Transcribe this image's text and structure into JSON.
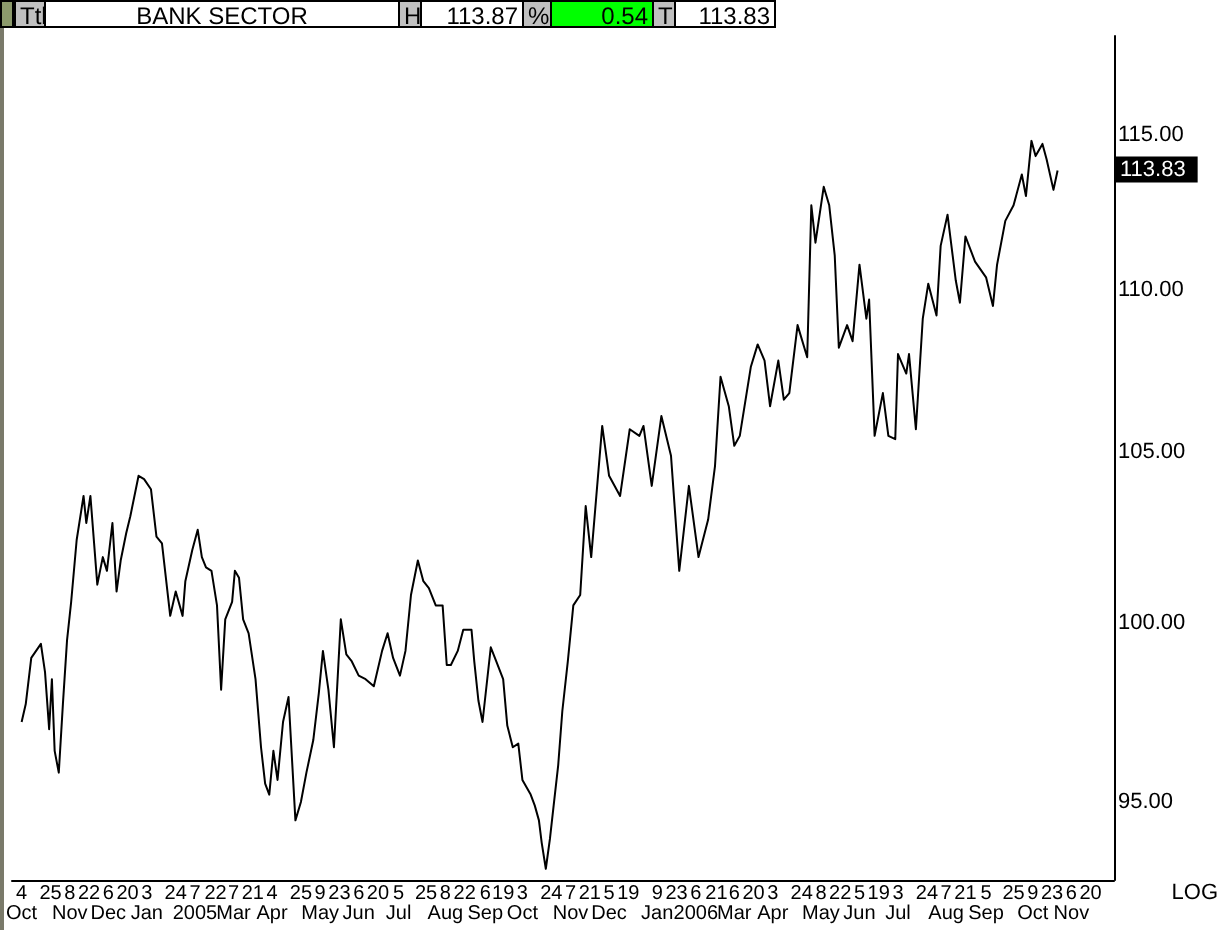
{
  "chart_data": {
    "type": "line",
    "title": "BANK SECTOR",
    "annotations": [
      "Ttl",
      "H",
      "113.87",
      "%",
      "0.54",
      "T",
      "113.83",
      "LOG",
      {
        "text": "113.83",
        "x": "2006-10-27",
        "y": 113.83
      }
    ],
    "x": [
      "2004-10-04",
      "2004-10-07",
      "2004-10-11",
      "2004-10-18",
      "2004-10-21",
      "2004-10-24",
      "2004-10-26",
      "2004-10-28",
      "2004-10-31",
      "2004-11-03",
      "2004-11-06",
      "2004-11-09",
      "2004-11-13",
      "2004-11-18",
      "2004-11-20",
      "2004-11-23",
      "2004-11-28",
      "2004-12-02",
      "2004-12-05",
      "2004-12-09",
      "2004-12-12",
      "2004-12-15",
      "2004-12-19",
      "2004-12-22",
      "2004-12-28",
      "2005-01-01",
      "2005-01-06",
      "2005-01-10",
      "2005-01-14",
      "2005-01-20",
      "2005-01-24",
      "2005-01-29",
      "2005-01-31",
      "2005-02-05",
      "2005-02-09",
      "2005-02-12",
      "2005-02-15",
      "2005-02-19",
      "2005-02-23",
      "2005-02-26",
      "2005-03-01",
      "2005-03-06",
      "2005-03-08",
      "2005-03-11",
      "2005-03-14",
      "2005-03-18",
      "2005-03-23",
      "2005-03-27",
      "2005-03-30",
      "2005-04-02",
      "2005-04-05",
      "2005-04-08",
      "2005-04-12",
      "2005-04-16",
      "2005-04-21",
      "2005-04-25",
      "2005-04-29",
      "2005-05-04",
      "2005-05-08",
      "2005-05-11",
      "2005-05-15",
      "2005-05-19",
      "2005-05-24",
      "2005-05-28",
      "2005-06-01",
      "2005-06-06",
      "2005-06-11",
      "2005-06-17",
      "2005-06-23",
      "2005-06-27",
      "2005-07-01",
      "2005-07-06",
      "2005-07-10",
      "2005-07-14",
      "2005-07-19",
      "2005-07-23",
      "2005-07-27",
      "2005-08-01",
      "2005-08-06",
      "2005-08-09",
      "2005-08-12",
      "2005-08-17",
      "2005-08-21",
      "2005-08-27",
      "2005-08-29",
      "2005-09-01",
      "2005-09-04",
      "2005-09-10",
      "2005-09-14",
      "2005-09-19",
      "2005-09-22",
      "2005-09-26",
      "2005-09-30",
      "2005-10-03",
      "2005-10-09",
      "2005-10-12",
      "2005-10-15",
      "2005-10-17",
      "2005-10-20",
      "2005-10-23",
      "2005-10-26",
      "2005-10-29",
      "2005-11-01",
      "2005-11-05",
      "2005-11-09",
      "2005-11-14",
      "2005-11-18",
      "2005-11-22",
      "2005-11-30",
      "2005-12-05",
      "2005-12-13",
      "2005-12-20",
      "2005-12-27",
      "2005-12-30",
      "2006-01-05",
      "2006-01-12",
      "2006-01-19",
      "2006-01-25",
      "2006-02-01",
      "2006-02-08",
      "2006-02-15",
      "2006-02-20",
      "2006-02-24",
      "2006-03-02",
      "2006-03-06",
      "2006-03-10",
      "2006-03-18",
      "2006-03-23",
      "2006-03-28",
      "2006-04-01",
      "2006-04-07",
      "2006-04-11",
      "2006-04-15",
      "2006-04-21",
      "2006-04-28",
      "2006-05-01",
      "2006-05-04",
      "2006-05-10",
      "2006-05-14",
      "2006-05-18",
      "2006-05-21",
      "2006-05-27",
      "2006-05-31",
      "2006-06-05",
      "2006-06-10",
      "2006-06-12",
      "2006-06-16",
      "2006-06-22",
      "2006-06-26",
      "2006-07-01",
      "2006-07-03",
      "2006-07-09",
      "2006-07-11",
      "2006-07-16",
      "2006-07-21",
      "2006-07-25",
      "2006-07-31",
      "2006-08-03",
      "2006-08-08",
      "2006-08-14",
      "2006-08-17",
      "2006-08-21",
      "2006-08-28",
      "2006-09-05",
      "2006-09-10",
      "2006-09-13",
      "2006-09-19",
      "2006-09-25",
      "2006-10-01",
      "2006-10-04",
      "2006-10-08",
      "2006-10-11",
      "2006-10-16",
      "2006-10-19",
      "2006-10-24",
      "2006-10-27"
    ],
    "series": [
      {
        "color": "#000000",
        "values": [
          97.2,
          97.7,
          99.0,
          99.4,
          98.6,
          97.0,
          98.4,
          96.4,
          95.8,
          97.7,
          99.5,
          100.6,
          102.4,
          103.7,
          102.9,
          103.7,
          101.1,
          101.9,
          101.5,
          102.9,
          100.9,
          101.8,
          102.6,
          103.1,
          104.3,
          104.2,
          103.9,
          102.5,
          102.3,
          100.2,
          100.9,
          100.2,
          101.2,
          102.1,
          102.7,
          101.9,
          101.6,
          101.5,
          100.5,
          98.1,
          100.1,
          100.6,
          101.5,
          101.3,
          100.1,
          99.7,
          98.4,
          96.5,
          95.5,
          95.2,
          96.4,
          95.6,
          97.2,
          97.9,
          94.5,
          95.0,
          95.8,
          96.7,
          98.0,
          99.2,
          98.1,
          96.5,
          100.1,
          99.1,
          98.9,
          98.5,
          98.4,
          98.2,
          99.2,
          99.7,
          99.0,
          98.5,
          99.2,
          100.8,
          101.8,
          101.2,
          101.0,
          100.5,
          100.5,
          98.8,
          98.8,
          99.2,
          99.8,
          99.8,
          98.9,
          97.8,
          97.2,
          99.3,
          98.9,
          98.4,
          97.1,
          96.5,
          96.6,
          95.6,
          95.2,
          94.9,
          94.5,
          93.9,
          93.2,
          94.0,
          95.0,
          96.0,
          97.5,
          98.9,
          100.5,
          100.8,
          103.4,
          101.9,
          105.8,
          104.3,
          103.7,
          105.7,
          105.5,
          105.8,
          104.0,
          106.1,
          104.9,
          101.5,
          104.0,
          101.9,
          103.0,
          104.6,
          107.3,
          106.4,
          105.2,
          105.5,
          107.6,
          108.3,
          107.8,
          106.4,
          107.8,
          106.6,
          106.8,
          108.9,
          107.9,
          112.7,
          111.5,
          113.3,
          112.7,
          111.1,
          108.2,
          108.9,
          108.4,
          110.8,
          109.1,
          109.7,
          105.5,
          106.8,
          105.5,
          105.4,
          108.0,
          107.4,
          108.0,
          105.7,
          109.1,
          110.2,
          109.2,
          111.4,
          112.4,
          110.3,
          109.6,
          111.7,
          110.9,
          110.4,
          109.5,
          110.8,
          112.2,
          112.7,
          113.7,
          113.0,
          114.8,
          114.3,
          114.7,
          114.2,
          113.2,
          113.83
        ]
      }
    ],
    "xlim": [
      "2004-09-27",
      "2006-12-07"
    ],
    "ylim": [
      92.9,
      118.3
    ],
    "xticks": [
      {
        "value": "2004-10-04",
        "label": "4\nOct"
      },
      {
        "value": "2004-10-25",
        "label": "25"
      },
      {
        "value": "2004-11-08",
        "label": "8\nNov"
      },
      {
        "value": "2004-11-22",
        "label": "22"
      },
      {
        "value": "2004-12-06",
        "label": "6\nDec"
      },
      {
        "value": "2004-12-20",
        "label": "20"
      },
      {
        "value": "2005-01-03",
        "label": "3\nJan"
      },
      {
        "value": "2005-01-24",
        "label": "24"
      },
      {
        "value": "2005-02-07",
        "label": "7\n2005"
      },
      {
        "value": "2005-02-22",
        "label": "22"
      },
      {
        "value": "2005-03-07",
        "label": "7\nMar"
      },
      {
        "value": "2005-03-21",
        "label": "21"
      },
      {
        "value": "2005-04-04",
        "label": "4\nApr"
      },
      {
        "value": "2005-04-25",
        "label": "25"
      },
      {
        "value": "2005-05-09",
        "label": "9\nMay"
      },
      {
        "value": "2005-05-23",
        "label": "23"
      },
      {
        "value": "2005-06-06",
        "label": "6\nJun"
      },
      {
        "value": "2005-06-20",
        "label": "20"
      },
      {
        "value": "2005-07-05",
        "label": "5\nJul"
      },
      {
        "value": "2005-07-25",
        "label": "25"
      },
      {
        "value": "2005-08-08",
        "label": "8\nAug"
      },
      {
        "value": "2005-08-22",
        "label": "22"
      },
      {
        "value": "2005-09-06",
        "label": "6\nSep"
      },
      {
        "value": "2005-09-19",
        "label": "19"
      },
      {
        "value": "2005-10-03",
        "label": "3\nOct"
      },
      {
        "value": "2005-10-24",
        "label": "24"
      },
      {
        "value": "2005-11-07",
        "label": "7\nNov"
      },
      {
        "value": "2005-11-21",
        "label": "21"
      },
      {
        "value": "2005-12-05",
        "label": "5\nDec"
      },
      {
        "value": "2005-12-19",
        "label": "19"
      },
      {
        "value": "2006-01-09",
        "label": "9\nJan"
      },
      {
        "value": "2006-01-23",
        "label": "23"
      },
      {
        "value": "2006-02-06",
        "label": "6\n2006"
      },
      {
        "value": "2006-02-21",
        "label": "21"
      },
      {
        "value": "2006-03-06",
        "label": "6\nMar"
      },
      {
        "value": "2006-03-20",
        "label": "20"
      },
      {
        "value": "2006-04-03",
        "label": "3\nApr"
      },
      {
        "value": "2006-04-24",
        "label": "24"
      },
      {
        "value": "2006-05-08",
        "label": "8\nMay"
      },
      {
        "value": "2006-05-22",
        "label": "22"
      },
      {
        "value": "2006-06-05",
        "label": "5\nJun"
      },
      {
        "value": "2006-06-19",
        "label": "19"
      },
      {
        "value": "2006-07-03",
        "label": "3\nJul"
      },
      {
        "value": "2006-07-24",
        "label": "24"
      },
      {
        "value": "2006-08-07",
        "label": "7\nAug"
      },
      {
        "value": "2006-08-21",
        "label": "21"
      },
      {
        "value": "2006-09-05",
        "label": "5\nSep"
      },
      {
        "value": "2006-09-25",
        "label": "25"
      },
      {
        "value": "2006-10-09",
        "label": "9\nOct"
      },
      {
        "value": "2006-10-23",
        "label": "23"
      },
      {
        "value": "2006-11-06",
        "label": "6\nNov"
      },
      {
        "value": "2006-11-20",
        "label": "20"
      }
    ],
    "yticks": [
      {
        "value": 95,
        "label": "95.00"
      },
      {
        "value": 100,
        "label": "100.00"
      },
      {
        "value": 105,
        "label": "105.00"
      },
      {
        "value": 110,
        "label": "110.00"
      },
      {
        "value": 115,
        "label": "115.00"
      }
    ],
    "log": true,
    "marker": "none",
    "line_style": "solid"
  }
}
